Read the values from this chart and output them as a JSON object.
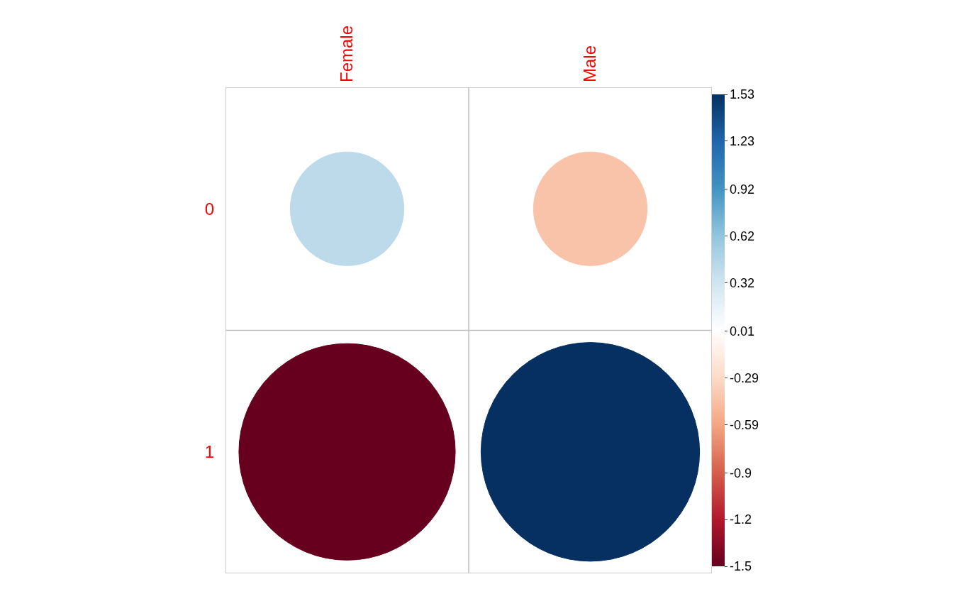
{
  "chart_data": {
    "type": "bubble",
    "categories": [
      "Female",
      "Male"
    ],
    "series": [
      {
        "values": [
          0,
          0
        ],
        "sizes": [
          0.27,
          0.27
        ],
        "cvalues": [
          0.42,
          -0.42
        ],
        "colors": [
          "#bcdaea",
          "#f9c3a9"
        ]
      },
      {
        "values": [
          1,
          1
        ],
        "sizes": [
          0.98,
          1
        ],
        "cvalues": [
          -1.5,
          1.53
        ],
        "colors": [
          "#67001f",
          "#053061"
        ]
      }
    ],
    "ylim": [
      1.5,
      -0.5
    ],
    "yticks": [
      0,
      1
    ],
    "clim": [
      -1.5,
      1.53
    ],
    "cticks": [
      -1.5,
      -1.2,
      -0.9,
      -0.59,
      -0.29,
      0.01,
      0.32,
      0.62,
      0.92,
      1.23,
      1.53
    ],
    "grid": true
  }
}
